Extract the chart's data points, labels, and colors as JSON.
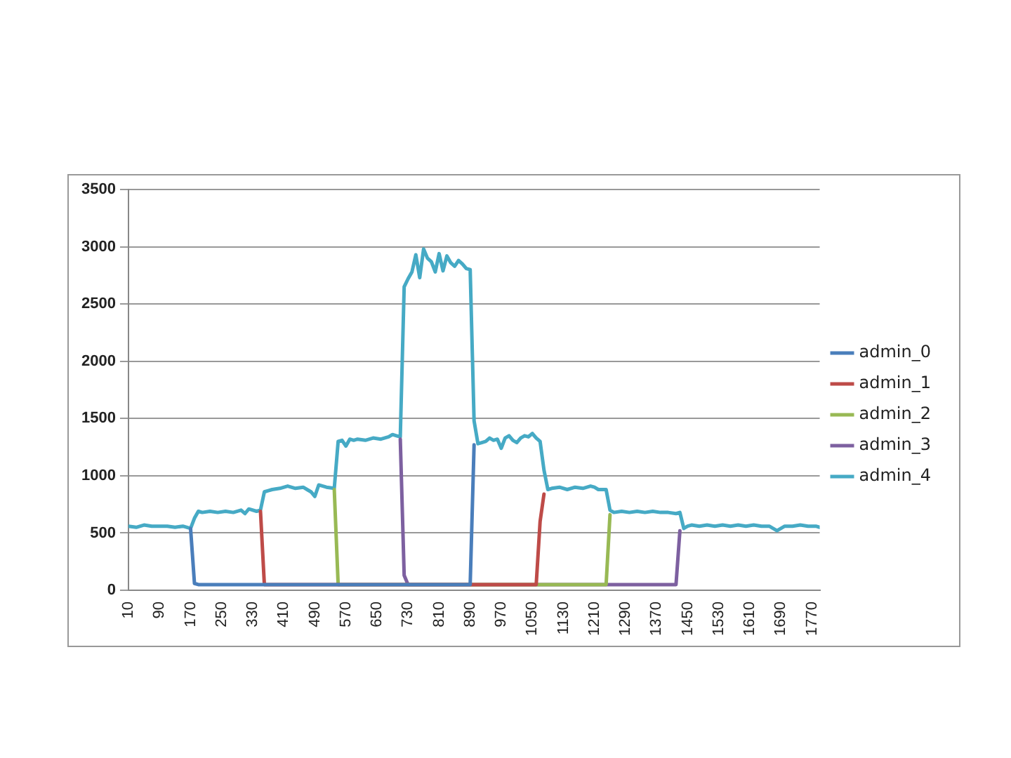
{
  "chart_data": {
    "type": "line",
    "xlim": [
      10,
      1790
    ],
    "xticks": [
      10,
      90,
      170,
      250,
      330,
      410,
      490,
      570,
      650,
      730,
      810,
      890,
      970,
      1050,
      1130,
      1210,
      1290,
      1370,
      1450,
      1530,
      1610,
      1690,
      1770
    ],
    "ylim": [
      0,
      3500
    ],
    "yticks": [
      0,
      500,
      1000,
      1500,
      2000,
      2500,
      3000,
      3500
    ],
    "grid": "y",
    "legend": "right",
    "marker": "none",
    "line_style": "solid",
    "series": [
      {
        "name": "admin_0",
        "color": "#4a7ebb",
        "x": [
          170,
          180,
          190,
          220,
          250,
          280,
          310,
          340,
          350,
          890,
          900
        ],
        "values": [
          540,
          60,
          50,
          50,
          50,
          50,
          50,
          50,
          50,
          50,
          1270
        ]
      },
      {
        "name": "admin_1",
        "color": "#be4b48",
        "x": [
          350,
          360,
          400,
          450,
          500,
          540,
          1060,
          1070,
          1080
        ],
        "values": [
          690,
          50,
          50,
          50,
          50,
          50,
          50,
          600,
          840
        ]
      },
      {
        "name": "admin_2",
        "color": "#98b954",
        "x": [
          540,
          550,
          600,
          650,
          700,
          720,
          1240,
          1250
        ],
        "values": [
          880,
          50,
          50,
          50,
          50,
          50,
          50,
          660
        ]
      },
      {
        "name": "admin_3",
        "color": "#7d60a0",
        "x": [
          710,
          720,
          730,
          800,
          900,
          1000,
          1100,
          1200,
          1300,
          1400,
          1420,
          1430
        ],
        "values": [
          1320,
          130,
          50,
          50,
          50,
          50,
          50,
          50,
          50,
          50,
          50,
          520
        ]
      },
      {
        "name": "admin_4",
        "color": "#46aac5",
        "x": [
          10,
          30,
          50,
          70,
          90,
          110,
          130,
          150,
          170,
          180,
          190,
          200,
          220,
          240,
          260,
          280,
          300,
          310,
          320,
          340,
          350,
          360,
          370,
          380,
          400,
          420,
          440,
          460,
          470,
          480,
          490,
          500,
          520,
          540,
          550,
          560,
          570,
          580,
          590,
          600,
          620,
          640,
          660,
          680,
          690,
          700,
          710,
          720,
          730,
          740,
          750,
          760,
          770,
          780,
          790,
          800,
          810,
          820,
          830,
          840,
          850,
          860,
          870,
          880,
          890,
          900,
          910,
          920,
          930,
          940,
          950,
          960,
          970,
          980,
          990,
          1000,
          1010,
          1020,
          1030,
          1040,
          1050,
          1060,
          1070,
          1080,
          1090,
          1100,
          1120,
          1140,
          1160,
          1180,
          1200,
          1210,
          1220,
          1240,
          1250,
          1260,
          1280,
          1300,
          1320,
          1340,
          1360,
          1380,
          1400,
          1420,
          1430,
          1440,
          1450,
          1460,
          1480,
          1500,
          1520,
          1540,
          1560,
          1580,
          1600,
          1620,
          1640,
          1660,
          1680,
          1700,
          1720,
          1740,
          1760,
          1780,
          1790
        ],
        "values": [
          560,
          550,
          570,
          560,
          560,
          560,
          550,
          560,
          540,
          630,
          690,
          680,
          690,
          680,
          690,
          680,
          700,
          670,
          710,
          690,
          700,
          860,
          870,
          880,
          890,
          910,
          890,
          900,
          880,
          860,
          820,
          920,
          900,
          890,
          1300,
          1310,
          1260,
          1320,
          1310,
          1320,
          1310,
          1330,
          1320,
          1340,
          1360,
          1350,
          1340,
          2650,
          2720,
          2780,
          2930,
          2730,
          2980,
          2900,
          2870,
          2780,
          2940,
          2790,
          2920,
          2860,
          2830,
          2880,
          2850,
          2810,
          2800,
          1480,
          1280,
          1290,
          1300,
          1330,
          1310,
          1320,
          1240,
          1330,
          1350,
          1310,
          1290,
          1330,
          1350,
          1340,
          1370,
          1330,
          1300,
          1050,
          880,
          890,
          900,
          880,
          900,
          890,
          910,
          900,
          880,
          880,
          700,
          680,
          690,
          680,
          690,
          680,
          690,
          680,
          680,
          670,
          680,
          540,
          560,
          570,
          560,
          570,
          560,
          570,
          560,
          570,
          560,
          570,
          560,
          560,
          520,
          560,
          560,
          570,
          560,
          560,
          550
        ]
      }
    ]
  }
}
